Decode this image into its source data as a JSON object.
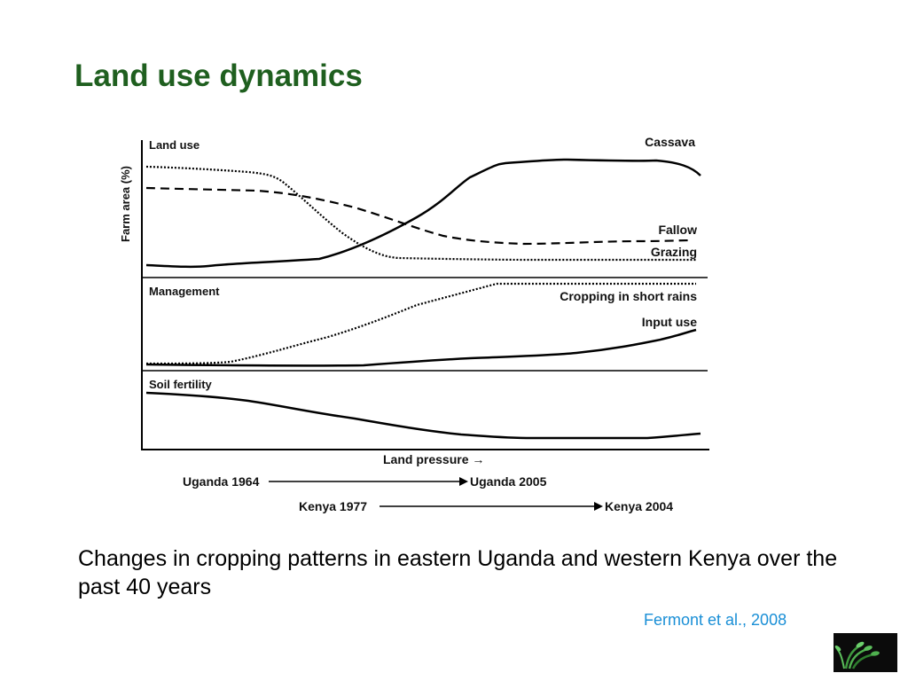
{
  "slide": {
    "title": "Land use dynamics",
    "caption": "Changes in cropping patterns in eastern Uganda and western Kenya over the past 40 years",
    "citation": "Fermont et al., 2008"
  },
  "diagram": {
    "y_axis_label": "Farm area (%)",
    "x_axis_label": "Land pressure →",
    "panels": {
      "land_use": {
        "title": "Land use",
        "lines": {
          "cassava": "Cassava",
          "fallow": "Fallow",
          "grazing": "Grazing"
        }
      },
      "management": {
        "title": "Management",
        "lines": {
          "cropping": "Cropping in short rains",
          "input_use": "Input use"
        }
      },
      "soil_fertility": {
        "title": "Soil fertility"
      }
    },
    "timelines": {
      "uganda": {
        "start": "Uganda 1964",
        "end": "Uganda 2005"
      },
      "kenya": {
        "start": "Kenya 1977",
        "end": "Kenya 2004"
      }
    }
  },
  "logo": {
    "icon": "cgiar-wheat-logo-icon"
  }
}
